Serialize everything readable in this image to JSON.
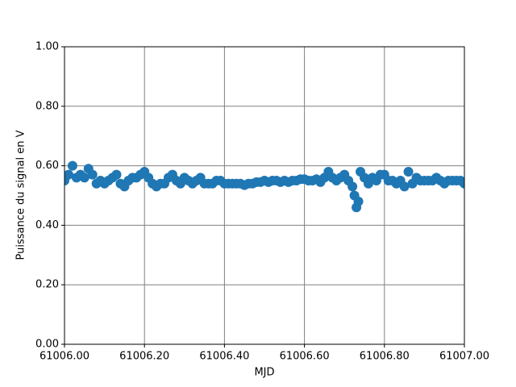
{
  "chart_data": {
    "type": "scatter",
    "xlabel": "MJD",
    "ylabel": "Puissance du signal en V",
    "color": "#1f77b4",
    "grid": true,
    "xlim": [
      61006.0,
      61007.0
    ],
    "ylim": [
      0.0,
      1.0
    ],
    "xticks": [
      {
        "value": 61006.0,
        "label": "61006.00"
      },
      {
        "value": 61006.2,
        "label": "61006.20"
      },
      {
        "value": 61006.4,
        "label": "61006.40"
      },
      {
        "value": 61006.6,
        "label": "61006.60"
      },
      {
        "value": 61006.8,
        "label": "61006.80"
      },
      {
        "value": 61007.0,
        "label": "61007.00"
      }
    ],
    "yticks": [
      {
        "value": 0.0,
        "label": "0.00"
      },
      {
        "value": 0.2,
        "label": "0.20"
      },
      {
        "value": 0.4,
        "label": "0.40"
      },
      {
        "value": 0.6,
        "label": "0.60"
      },
      {
        "value": 0.8,
        "label": "0.80"
      },
      {
        "value": 1.0,
        "label": "1.00"
      }
    ],
    "x": [
      61006.0,
      61006.01,
      61006.02,
      61006.03,
      61006.04,
      61006.05,
      61006.06,
      61006.07,
      61006.08,
      61006.09,
      61006.1,
      61006.11,
      61006.12,
      61006.13,
      61006.14,
      61006.15,
      61006.16,
      61006.17,
      61006.18,
      61006.19,
      61006.2,
      61006.21,
      61006.22,
      61006.23,
      61006.24,
      61006.25,
      61006.26,
      61006.27,
      61006.28,
      61006.29,
      61006.3,
      61006.31,
      61006.32,
      61006.33,
      61006.34,
      61006.35,
      61006.36,
      61006.37,
      61006.38,
      61006.39,
      61006.4,
      61006.41,
      61006.42,
      61006.43,
      61006.44,
      61006.45,
      61006.46,
      61006.47,
      61006.48,
      61006.49,
      61006.5,
      61006.51,
      61006.52,
      61006.53,
      61006.54,
      61006.55,
      61006.56,
      61006.57,
      61006.58,
      61006.59,
      61006.6,
      61006.61,
      61006.62,
      61006.63,
      61006.64,
      61006.65,
      61006.66,
      61006.67,
      61006.68,
      61006.69,
      61006.7,
      61006.71,
      61006.72,
      61006.725,
      61006.73,
      61006.735,
      61006.74,
      61006.75,
      61006.76,
      61006.77,
      61006.78,
      61006.79,
      61006.8,
      61006.81,
      61006.82,
      61006.83,
      61006.84,
      61006.85,
      61006.86,
      61006.87,
      61006.88,
      61006.89,
      61006.9,
      61006.91,
      61006.92,
      61006.93,
      61006.94,
      61006.95,
      61006.96,
      61006.97,
      61006.98,
      61006.99,
      61007.0
    ],
    "values": [
      0.55,
      0.57,
      0.6,
      0.56,
      0.57,
      0.56,
      0.59,
      0.57,
      0.54,
      0.55,
      0.54,
      0.55,
      0.56,
      0.57,
      0.54,
      0.53,
      0.55,
      0.56,
      0.56,
      0.57,
      0.58,
      0.56,
      0.54,
      0.53,
      0.54,
      0.54,
      0.56,
      0.57,
      0.55,
      0.54,
      0.56,
      0.55,
      0.54,
      0.55,
      0.56,
      0.54,
      0.54,
      0.54,
      0.55,
      0.55,
      0.54,
      0.54,
      0.54,
      0.54,
      0.54,
      0.535,
      0.54,
      0.54,
      0.545,
      0.545,
      0.55,
      0.545,
      0.55,
      0.55,
      0.545,
      0.55,
      0.545,
      0.55,
      0.55,
      0.555,
      0.555,
      0.55,
      0.55,
      0.555,
      0.545,
      0.56,
      0.58,
      0.56,
      0.55,
      0.56,
      0.57,
      0.55,
      0.53,
      0.5,
      0.46,
      0.48,
      0.58,
      0.56,
      0.54,
      0.56,
      0.55,
      0.57,
      0.57,
      0.55,
      0.55,
      0.54,
      0.55,
      0.53,
      0.58,
      0.54,
      0.56,
      0.55,
      0.55,
      0.55,
      0.55,
      0.56,
      0.55,
      0.54,
      0.55,
      0.55,
      0.55,
      0.55,
      0.54
    ]
  }
}
